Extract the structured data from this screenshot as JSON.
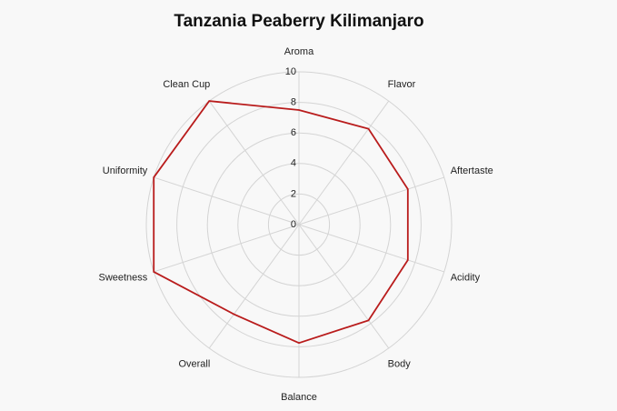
{
  "chart_data": {
    "type": "radar",
    "title": "Tanzania Peaberry Kilimanjaro",
    "categories": [
      "Aroma",
      "Flavor",
      "Aftertaste",
      "Acidity",
      "Body",
      "Balance",
      "Overall",
      "Sweetness",
      "Uniformity",
      "Clean Cup"
    ],
    "values": [
      7.5,
      7.75,
      7.5,
      7.5,
      7.75,
      7.75,
      7.25,
      10,
      10,
      10
    ],
    "color": "#b91c1c",
    "rlim": [
      0,
      10
    ],
    "rticks": [
      0,
      2,
      4,
      6,
      8,
      10
    ],
    "grid": true
  }
}
